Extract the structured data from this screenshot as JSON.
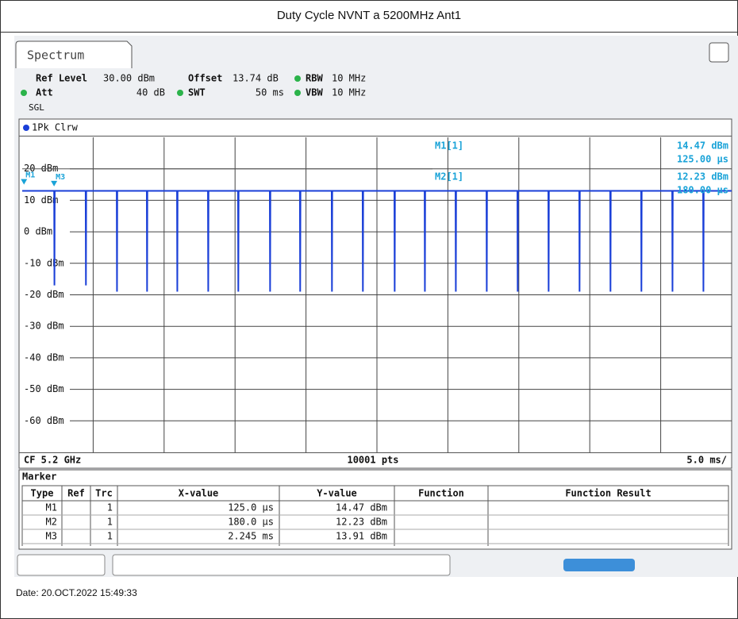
{
  "title": "Duty Cycle NVNT a 5200MHz Ant1",
  "tab": "Spectrum",
  "settings": {
    "ref_level_label": "Ref Level",
    "ref_level": "30.00 dBm",
    "offset_label": "Offset",
    "offset": "13.74 dB",
    "rbw_label": "RBW",
    "rbw": "10 MHz",
    "att_label": "Att",
    "att": "40 dB",
    "swt_label": "SWT",
    "swt": "50 ms",
    "vbw_label": "VBW",
    "vbw": "10 MHz",
    "mode": "SGL"
  },
  "trace_label": "1Pk Clrw",
  "chart_data": {
    "type": "line",
    "ylim": [
      -70,
      30
    ],
    "xlim": [
      0,
      50
    ],
    "yticks": [
      {
        "value": 20,
        "label": "20 dBm"
      },
      {
        "value": 10,
        "label": "10 dBm"
      },
      {
        "value": 0,
        "label": "0 dBm"
      },
      {
        "value": -10,
        "label": "-10 dBm"
      },
      {
        "value": -20,
        "label": "-20 dBm"
      },
      {
        "value": -30,
        "label": "-30 dBm"
      },
      {
        "value": -40,
        "label": "-40 dBm"
      },
      {
        "value": -50,
        "label": "-50 dBm"
      },
      {
        "value": -60,
        "label": "-60 dBm"
      }
    ],
    "series": [
      {
        "color": "#1a3fd8",
        "x": [
          0,
          2.25,
          2.27,
          2.29,
          4.47,
          4.49,
          4.51,
          6.66,
          6.68,
          6.7,
          8.78,
          8.8,
          8.82,
          10.91,
          10.93,
          10.95,
          13.09,
          13.11,
          13.13,
          15.21,
          15.23,
          15.25,
          17.45,
          17.47,
          17.49,
          19.57,
          19.59,
          19.61,
          21.81,
          21.83,
          21.85,
          23.99,
          24.01,
          24.03,
          26.23,
          26.25,
          26.27,
          28.36,
          28.38,
          28.4,
          30.54,
          30.56,
          30.58,
          32.72,
          32.74,
          32.76,
          34.9,
          34.92,
          34.94,
          37.08,
          37.1,
          37.12,
          39.26,
          39.28,
          39.3,
          41.44,
          41.46,
          41.48,
          43.62,
          43.64,
          43.66,
          45.81,
          45.83,
          45.85,
          47.99,
          48.01,
          48.03,
          50
        ],
        "values": [
          13,
          13,
          -17,
          13,
          13,
          -17,
          13,
          13,
          -19,
          13,
          13,
          -19,
          13,
          13,
          -19,
          13,
          13,
          -19,
          13,
          13,
          -19,
          13,
          13,
          -19,
          13,
          13,
          -19,
          13,
          13,
          -19,
          13,
          13,
          -19,
          13,
          13,
          -19,
          13,
          13,
          -19,
          13,
          13,
          -19,
          13,
          13,
          -19,
          13,
          13,
          -19,
          13,
          13,
          -19,
          13,
          13,
          -19,
          13,
          13,
          -19,
          13,
          13,
          -19,
          13,
          13,
          -19,
          13,
          13,
          -19,
          13,
          13
        ]
      }
    ],
    "markers": [
      {
        "name": "M1",
        "x": 0.125,
        "y": 14.47
      },
      {
        "name": "M3",
        "x": 2.245,
        "y": 13.91
      }
    ],
    "readout": [
      {
        "name": "M1[1]",
        "level": "14.47 dBm",
        "time": "125.00 µs"
      },
      {
        "name": "M2[1]",
        "level": "12.23 dBm",
        "time": "180.00 µs"
      }
    ]
  },
  "footer": {
    "cf": "CF 5.2 GHz",
    "points": "10001 pts",
    "span": "5.0 ms/"
  },
  "table": {
    "title": "Marker",
    "columns": [
      "Type",
      "Ref",
      "Trc",
      "X-value",
      "Y-value",
      "Function",
      "Function Result"
    ],
    "rows": [
      {
        "type": "M1",
        "trc": "1",
        "x": "125.0 µs",
        "y": "14.47 dBm"
      },
      {
        "type": "M2",
        "trc": "1",
        "x": "180.0 µs",
        "y": "12.23 dBm"
      },
      {
        "type": "M3",
        "trc": "1",
        "x": "2.245 ms",
        "y": "13.91 dBm"
      }
    ]
  },
  "date": "Date: 20.OCT.2022 15:49:33"
}
